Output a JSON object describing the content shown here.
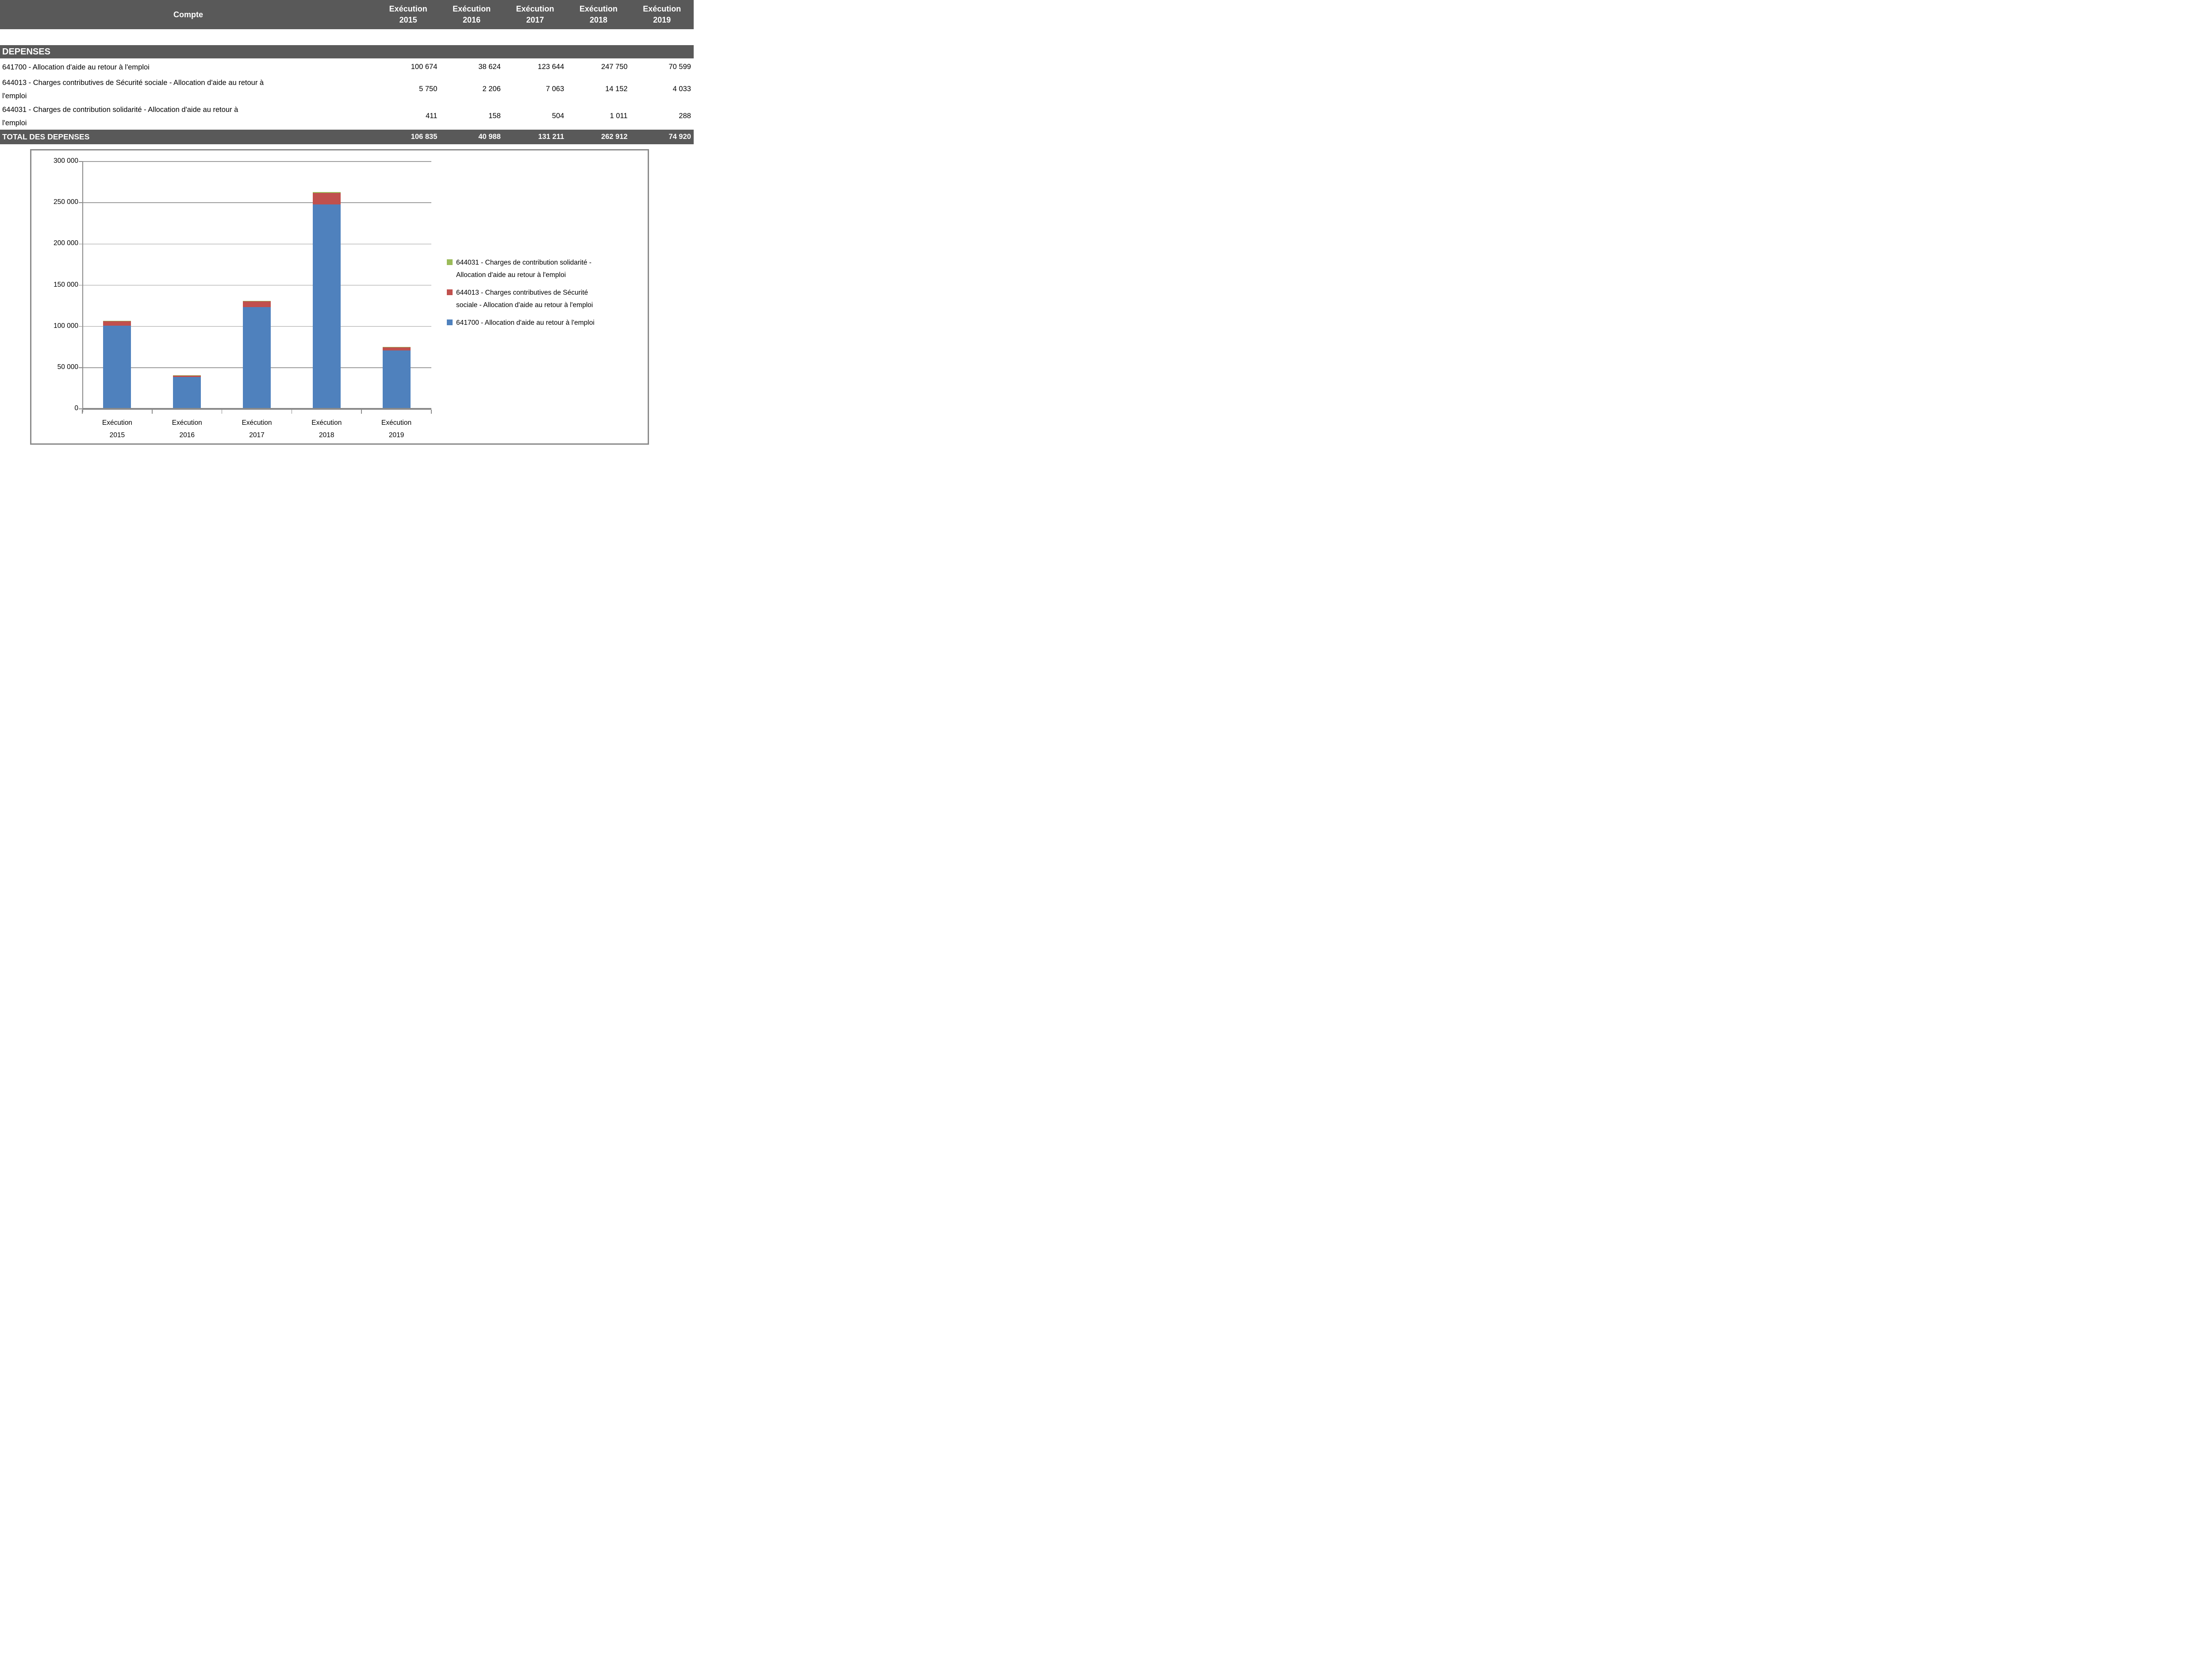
{
  "colors": {
    "band_gray": "#595959",
    "chart_border": "#8A8A8A",
    "gridline": "#9D9D9D",
    "series_blue": "#4F81BD",
    "series_red": "#C0504D",
    "series_green": "#9BBB59",
    "header_text": "#FFFFFF"
  },
  "table": {
    "header": {
      "account_col": "Compte",
      "year_cols": [
        {
          "lines": [
            "Exécution",
            "2015"
          ]
        },
        {
          "lines": [
            "Exécution",
            "2016"
          ]
        },
        {
          "lines": [
            "Exécution",
            "2017"
          ]
        },
        {
          "lines": [
            "Exécution",
            "2018"
          ]
        },
        {
          "lines": [
            "Exécution",
            "2019"
          ]
        }
      ]
    },
    "section_title": "DEPENSES",
    "rows": [
      {
        "label_lines": [
          "641700 - Allocation d'aide au retour à l'emploi"
        ],
        "values": [
          "100 674",
          "38 624",
          "123 644",
          "247 750",
          "70 599"
        ],
        "height": 39
      },
      {
        "label_lines": [
          "644013 - Charges contributives de Sécurité sociale - Allocation d'aide au retour à",
          "l'emploi"
        ],
        "values": [
          "5 750",
          "2 206",
          "7 063",
          "14 152",
          "4 033"
        ],
        "height": 61
      },
      {
        "label_lines": [
          "644031 - Charges de contribution solidarité - Allocation d'aide au retour à",
          "l'emploi"
        ],
        "values": [
          "411",
          "158",
          "504",
          "1 011",
          "288"
        ],
        "height": 61
      }
    ],
    "total": {
      "label": "TOTAL DES DEPENSES",
      "values": [
        "106 835",
        "40 988",
        "131 211",
        "262 912",
        "74 920"
      ]
    }
  },
  "chart_data": {
    "type": "bar",
    "stacked": true,
    "title": "",
    "xlabel": "",
    "ylabel": "",
    "categories": [
      "Exécution 2015",
      "Exécution 2016",
      "Exécution 2017",
      "Exécution 2018",
      "Exécution 2019"
    ],
    "category_label_lines": [
      [
        "Exécution",
        "2015"
      ],
      [
        "Exécution",
        "2016"
      ],
      [
        "Exécution",
        "2017"
      ],
      [
        "Exécution",
        "2018"
      ],
      [
        "Exécution",
        "2019"
      ]
    ],
    "series": [
      {
        "name": "641700 - Allocation d'aide au retour à l'emploi",
        "color": "#4F81BD",
        "values": [
          100674,
          38624,
          123644,
          247750,
          70599
        ]
      },
      {
        "name": "644013 - Charges contributives de Sécurité sociale - Allocation d'aide au retour à l'emploi",
        "color": "#C0504D",
        "values": [
          5750,
          2206,
          7063,
          14152,
          4033
        ]
      },
      {
        "name": "644031 - Charges de contribution solidarité - Allocation d'aide au retour à l'emploi",
        "color": "#9BBB59",
        "values": [
          411,
          158,
          504,
          1011,
          288
        ]
      }
    ],
    "ylim": [
      0,
      300000
    ],
    "ytick_step": 50000,
    "ytick_labels": [
      "0",
      "50 000",
      "100 000",
      "150 000",
      "200 000",
      "250 000",
      "300 000"
    ],
    "grid": true,
    "legend_position": "right",
    "legend": [
      {
        "color": "#9BBB59",
        "lines": [
          "644031 - Charges de contribution solidarité -",
          "Allocation d'aide au retour à l'emploi"
        ]
      },
      {
        "color": "#C0504D",
        "lines": [
          "644013 - Charges contributives de Sécurité",
          "sociale - Allocation d'aide au retour à l'emploi"
        ]
      },
      {
        "color": "#4F81BD",
        "lines": [
          "641700 - Allocation d'aide au retour à l'emploi"
        ]
      }
    ]
  }
}
